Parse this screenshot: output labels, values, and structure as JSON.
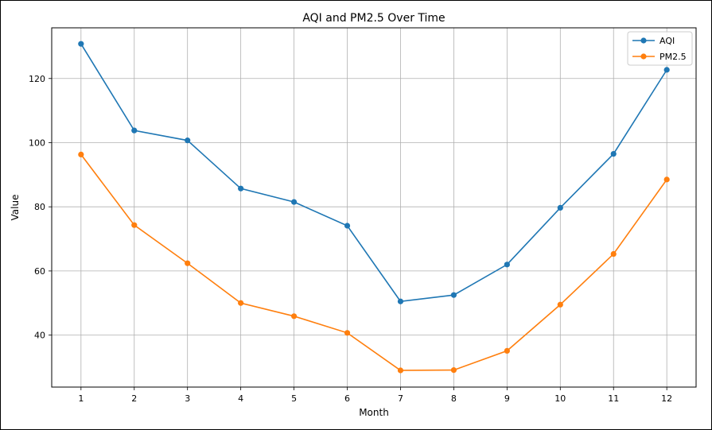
{
  "chart_data": {
    "type": "line",
    "title": "AQI and PM2.5 Over Time",
    "xlabel": "Month",
    "ylabel": "Value",
    "x": [
      1,
      2,
      3,
      4,
      5,
      6,
      7,
      8,
      9,
      10,
      11,
      12
    ],
    "xticks": [
      "1",
      "2",
      "3",
      "4",
      "5",
      "6",
      "7",
      "8",
      "9",
      "10",
      "11",
      "12"
    ],
    "yticks": [
      "40",
      "60",
      "80",
      "100",
      "120"
    ],
    "xlim": [
      0.45,
      12.55
    ],
    "ylim": [
      23.8,
      135.8
    ],
    "grid": true,
    "legend_position": "top-right",
    "series": [
      {
        "name": "AQI",
        "color": "#1f77b4",
        "values": [
          130.8,
          103.8,
          100.7,
          85.7,
          81.5,
          74.1,
          50.5,
          52.5,
          62.0,
          79.7,
          96.5,
          122.7
        ]
      },
      {
        "name": "PM2.5",
        "color": "#ff7f0e",
        "values": [
          96.3,
          74.3,
          62.4,
          50.0,
          45.9,
          40.7,
          29.0,
          29.1,
          35.1,
          49.5,
          65.3,
          88.5
        ]
      }
    ]
  }
}
